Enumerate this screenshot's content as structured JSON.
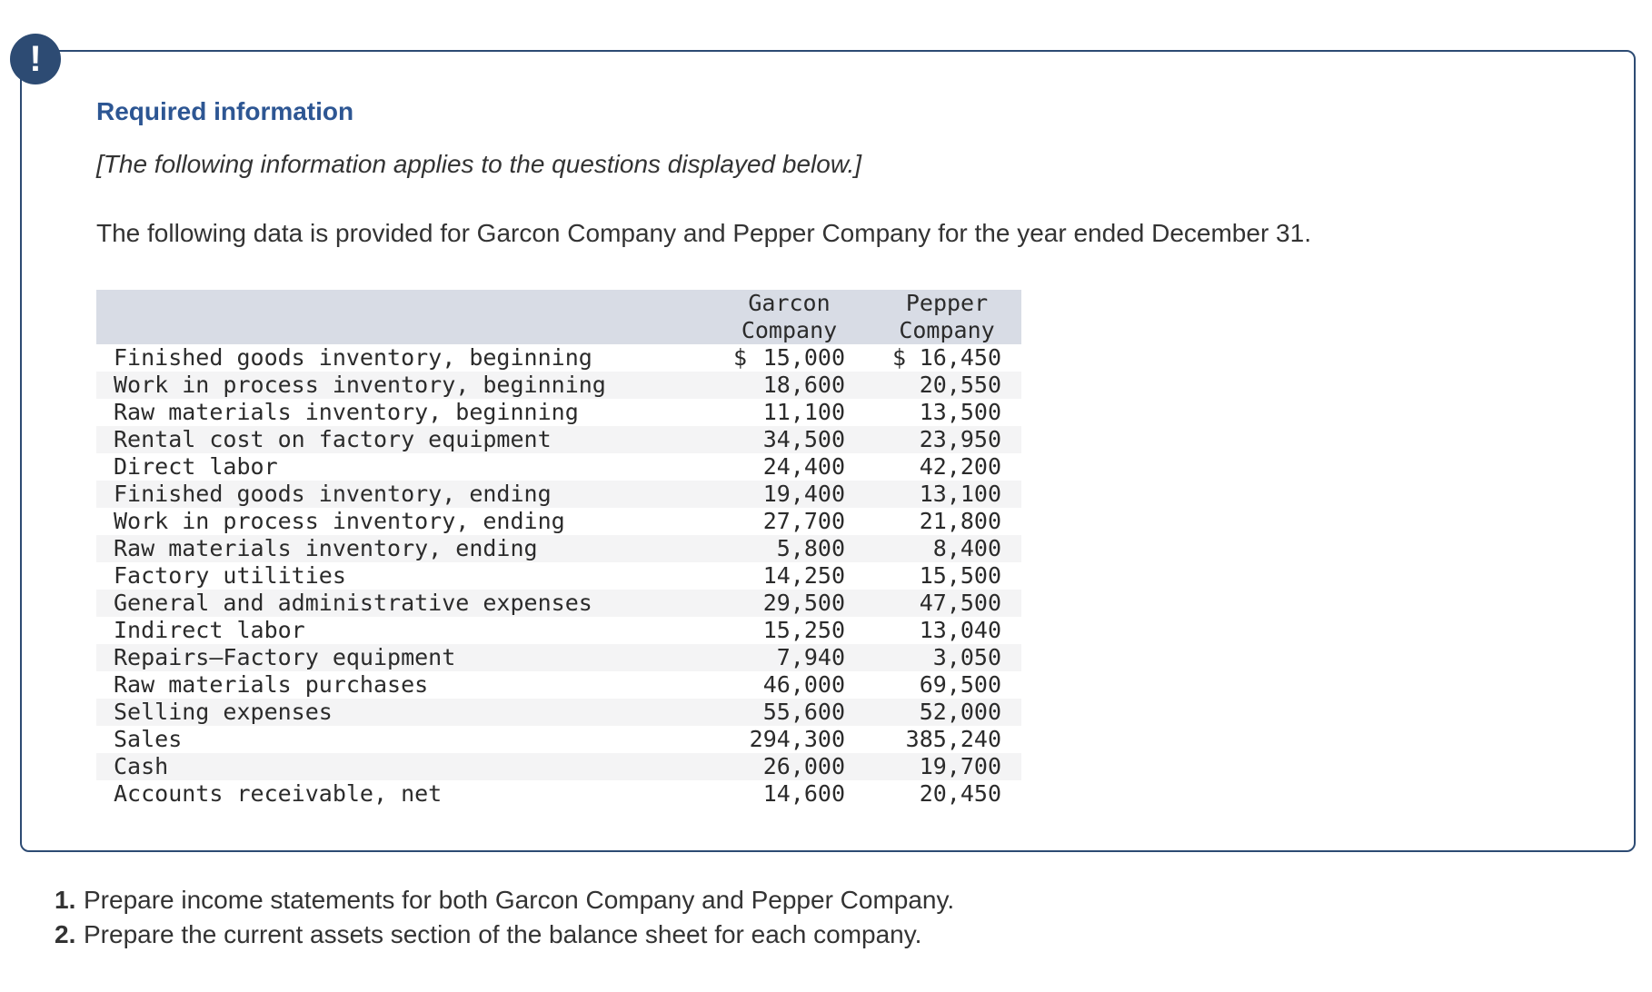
{
  "alert": {
    "icon_glyph": "!",
    "title": "Required information",
    "note": "[The following information applies to the questions displayed below.]",
    "intro": "The following data is provided for Garcon Company and Pepper Company for the year ended December 31."
  },
  "table": {
    "currency_symbol": "$",
    "col_headers": [
      {
        "line1": "Garcon",
        "line2": "Company"
      },
      {
        "line1": "Pepper",
        "line2": "Company"
      }
    ],
    "rows": [
      {
        "label": "Finished goods inventory, beginning",
        "garcon": "15,000",
        "pepper": "16,450",
        "dollar": true
      },
      {
        "label": "Work in process inventory, beginning",
        "garcon": "18,600",
        "pepper": "20,550",
        "dollar": false
      },
      {
        "label": "Raw materials inventory, beginning",
        "garcon": "11,100",
        "pepper": "13,500",
        "dollar": false
      },
      {
        "label": "Rental cost on factory equipment",
        "garcon": "34,500",
        "pepper": "23,950",
        "dollar": false
      },
      {
        "label": "Direct labor",
        "garcon": "24,400",
        "pepper": "42,200",
        "dollar": false
      },
      {
        "label": "Finished goods inventory, ending",
        "garcon": "19,400",
        "pepper": "13,100",
        "dollar": false
      },
      {
        "label": "Work in process inventory, ending",
        "garcon": "27,700",
        "pepper": "21,800",
        "dollar": false
      },
      {
        "label": "Raw materials inventory, ending",
        "garcon": "5,800",
        "pepper": "8,400",
        "dollar": false
      },
      {
        "label": "Factory utilities",
        "garcon": "14,250",
        "pepper": "15,500",
        "dollar": false
      },
      {
        "label": "General and administrative expenses",
        "garcon": "29,500",
        "pepper": "47,500",
        "dollar": false
      },
      {
        "label": "Indirect labor",
        "garcon": "15,250",
        "pepper": "13,040",
        "dollar": false
      },
      {
        "label": "Repairs–Factory equipment",
        "garcon": "7,940",
        "pepper": "3,050",
        "dollar": false
      },
      {
        "label": "Raw materials purchases",
        "garcon": "46,000",
        "pepper": "69,500",
        "dollar": false
      },
      {
        "label": "Selling expenses",
        "garcon": "55,600",
        "pepper": "52,000",
        "dollar": false
      },
      {
        "label": "Sales",
        "garcon": "294,300",
        "pepper": "385,240",
        "dollar": false
      },
      {
        "label": "Cash",
        "garcon": "26,000",
        "pepper": "19,700",
        "dollar": false
      },
      {
        "label": "Accounts receivable, net",
        "garcon": "14,600",
        "pepper": "20,450",
        "dollar": false
      }
    ]
  },
  "questions": [
    {
      "num": "1.",
      "text": "Prepare income statements for both Garcon Company and Pepper Company."
    },
    {
      "num": "2.",
      "text": "Prepare the current assets section of the balance sheet for each company."
    }
  ],
  "colors": {
    "accent_navy": "#2d4b73",
    "title_blue": "#2d5693",
    "header_bg": "#d8dce5",
    "stripe_bg": "#f4f4f5",
    "text": "#333333",
    "table_text": "#2b2b2b"
  }
}
